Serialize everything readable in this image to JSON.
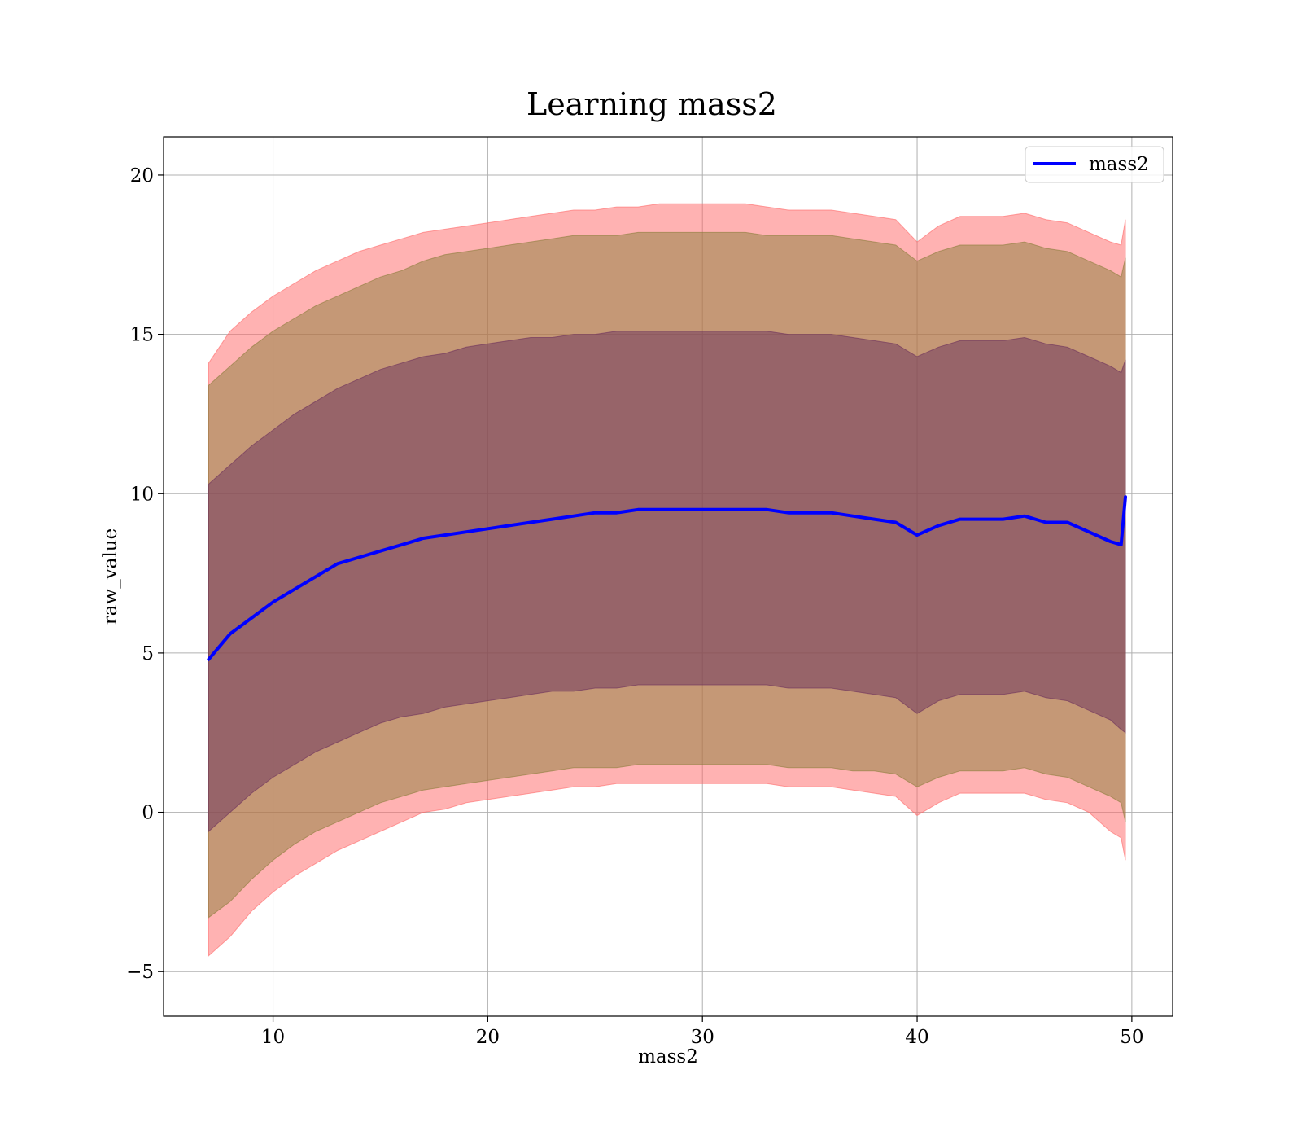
{
  "chart_data": {
    "type": "line",
    "title": "Learning mass2",
    "xlabel": "mass2",
    "ylabel": "raw_value",
    "xlim": [
      4.9,
      51.9
    ],
    "ylim": [
      -6.4,
      21.2
    ],
    "xticks": [
      10,
      20,
      30,
      40,
      50
    ],
    "yticks": [
      -5,
      0,
      5,
      10,
      15,
      20
    ],
    "xtick_labels": [
      "10",
      "20",
      "30",
      "40",
      "50"
    ],
    "ytick_labels": [
      "−5",
      "0",
      "5",
      "10",
      "15",
      "20"
    ],
    "grid": true,
    "legend": {
      "position": "top-right",
      "entries": [
        "mass2"
      ]
    },
    "series": [
      {
        "name": "mass2",
        "style": "line",
        "color": "#0000ff",
        "x": [
          7.0,
          8,
          9,
          10,
          11,
          12,
          13,
          14,
          15,
          16,
          17,
          18,
          19,
          20,
          21,
          22,
          23,
          24,
          25,
          26,
          27,
          28,
          29,
          30,
          31,
          32,
          33,
          34,
          35,
          36,
          37,
          38,
          39,
          40,
          41,
          42,
          43,
          44,
          45,
          46,
          47,
          48,
          49,
          49.5,
          49.7
        ],
        "y": [
          4.8,
          5.6,
          6.1,
          6.6,
          7.0,
          7.4,
          7.8,
          8.0,
          8.2,
          8.4,
          8.6,
          8.7,
          8.8,
          8.9,
          9.0,
          9.1,
          9.2,
          9.3,
          9.4,
          9.4,
          9.5,
          9.5,
          9.5,
          9.5,
          9.5,
          9.5,
          9.5,
          9.4,
          9.4,
          9.4,
          9.3,
          9.2,
          9.1,
          8.7,
          9.0,
          9.2,
          9.2,
          9.2,
          9.3,
          9.1,
          9.1,
          8.8,
          8.5,
          8.4,
          9.9
        ]
      }
    ],
    "bands": [
      {
        "color": "#ff6666",
        "x": [
          7.0,
          8,
          9,
          10,
          11,
          12,
          13,
          14,
          15,
          16,
          17,
          18,
          19,
          20,
          21,
          22,
          23,
          24,
          25,
          26,
          27,
          28,
          29,
          30,
          31,
          32,
          33,
          34,
          35,
          36,
          37,
          38,
          39,
          40,
          41,
          42,
          43,
          44,
          45,
          46,
          47,
          48,
          49,
          49.5,
          49.7
        ],
        "lower": [
          -4.5,
          -3.9,
          -3.1,
          -2.5,
          -2.0,
          -1.6,
          -1.2,
          -0.9,
          -0.6,
          -0.3,
          0.0,
          0.1,
          0.3,
          0.4,
          0.5,
          0.6,
          0.7,
          0.8,
          0.8,
          0.9,
          0.9,
          0.9,
          0.9,
          0.9,
          0.9,
          0.9,
          0.9,
          0.8,
          0.8,
          0.8,
          0.7,
          0.6,
          0.5,
          -0.1,
          0.3,
          0.6,
          0.6,
          0.6,
          0.6,
          0.4,
          0.3,
          0.0,
          -0.6,
          -0.8,
          -1.5
        ],
        "upper": [
          14.1,
          15.1,
          15.7,
          16.2,
          16.6,
          17.0,
          17.3,
          17.6,
          17.8,
          18.0,
          18.2,
          18.3,
          18.4,
          18.5,
          18.6,
          18.7,
          18.8,
          18.9,
          18.9,
          19.0,
          19.0,
          19.1,
          19.1,
          19.1,
          19.1,
          19.1,
          19.0,
          18.9,
          18.9,
          18.9,
          18.8,
          18.7,
          18.6,
          17.9,
          18.4,
          18.7,
          18.7,
          18.7,
          18.8,
          18.6,
          18.5,
          18.2,
          17.9,
          17.8,
          18.6
        ]
      },
      {
        "color": "#8b7d3a",
        "x": [
          7.0,
          8,
          9,
          10,
          11,
          12,
          13,
          14,
          15,
          16,
          17,
          18,
          19,
          20,
          21,
          22,
          23,
          24,
          25,
          26,
          27,
          28,
          29,
          30,
          31,
          32,
          33,
          34,
          35,
          36,
          37,
          38,
          39,
          40,
          41,
          42,
          43,
          44,
          45,
          46,
          47,
          48,
          49,
          49.5,
          49.7
        ],
        "lower": [
          -3.3,
          -2.8,
          -2.1,
          -1.5,
          -1.0,
          -0.6,
          -0.3,
          0.0,
          0.3,
          0.5,
          0.7,
          0.8,
          0.9,
          1.0,
          1.1,
          1.2,
          1.3,
          1.4,
          1.4,
          1.4,
          1.5,
          1.5,
          1.5,
          1.5,
          1.5,
          1.5,
          1.5,
          1.4,
          1.4,
          1.4,
          1.3,
          1.3,
          1.2,
          0.8,
          1.1,
          1.3,
          1.3,
          1.3,
          1.4,
          1.2,
          1.1,
          0.8,
          0.5,
          0.3,
          -0.3
        ],
        "upper": [
          13.4,
          14.0,
          14.6,
          15.1,
          15.5,
          15.9,
          16.2,
          16.5,
          16.8,
          17.0,
          17.3,
          17.5,
          17.6,
          17.7,
          17.8,
          17.9,
          18.0,
          18.1,
          18.1,
          18.1,
          18.2,
          18.2,
          18.2,
          18.2,
          18.2,
          18.2,
          18.1,
          18.1,
          18.1,
          18.1,
          18.0,
          17.9,
          17.8,
          17.3,
          17.6,
          17.8,
          17.8,
          17.8,
          17.9,
          17.7,
          17.6,
          17.3,
          17.0,
          16.8,
          17.4
        ]
      },
      {
        "color": "#6a2f5c",
        "x": [
          7.0,
          8,
          9,
          10,
          11,
          12,
          13,
          14,
          15,
          16,
          17,
          18,
          19,
          20,
          21,
          22,
          23,
          24,
          25,
          26,
          27,
          28,
          29,
          30,
          31,
          32,
          33,
          34,
          35,
          36,
          37,
          38,
          39,
          40,
          41,
          42,
          43,
          44,
          45,
          46,
          47,
          48,
          49,
          49.5,
          49.7
        ],
        "lower": [
          -0.6,
          0.0,
          0.6,
          1.1,
          1.5,
          1.9,
          2.2,
          2.5,
          2.8,
          3.0,
          3.1,
          3.3,
          3.4,
          3.5,
          3.6,
          3.7,
          3.8,
          3.8,
          3.9,
          3.9,
          4.0,
          4.0,
          4.0,
          4.0,
          4.0,
          4.0,
          4.0,
          3.9,
          3.9,
          3.9,
          3.8,
          3.7,
          3.6,
          3.1,
          3.5,
          3.7,
          3.7,
          3.7,
          3.8,
          3.6,
          3.5,
          3.2,
          2.9,
          2.6,
          2.5
        ],
        "upper": [
          10.3,
          10.9,
          11.5,
          12.0,
          12.5,
          12.9,
          13.3,
          13.6,
          13.9,
          14.1,
          14.3,
          14.4,
          14.6,
          14.7,
          14.8,
          14.9,
          14.9,
          15.0,
          15.0,
          15.1,
          15.1,
          15.1,
          15.1,
          15.1,
          15.1,
          15.1,
          15.1,
          15.0,
          15.0,
          15.0,
          14.9,
          14.8,
          14.7,
          14.3,
          14.6,
          14.8,
          14.8,
          14.8,
          14.9,
          14.7,
          14.6,
          14.3,
          14.0,
          13.8,
          14.2
        ]
      }
    ]
  }
}
